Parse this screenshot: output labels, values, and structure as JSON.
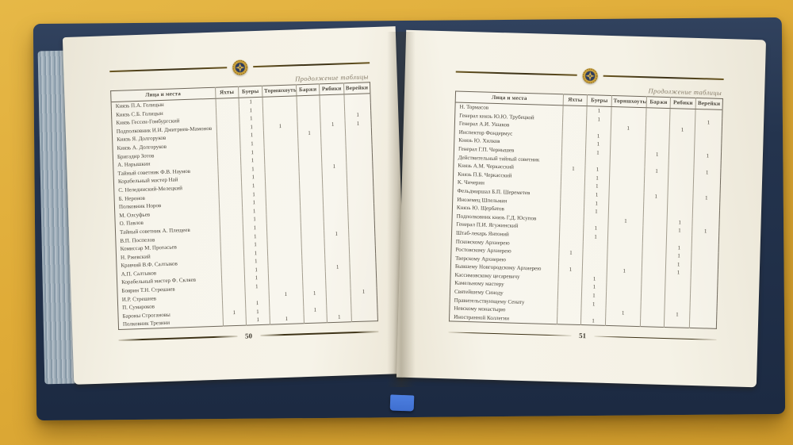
{
  "colors": {
    "background": "#dfab37",
    "cover": "#24344e",
    "page": "#f3f0e4",
    "gold": "#c79f3c",
    "ink": "#4b463c",
    "rule": "#3e3317",
    "page_edge": "#aebdc6",
    "ribbon": "#3f6fd0"
  },
  "left_page": {
    "caption": "Продолжение таблицы",
    "page_number": "50",
    "table": {
      "name_header": "Лица и места",
      "columns": [
        "Яхты",
        "Буеры",
        "Торншхоуты",
        "Баржи",
        "Рябики",
        "Верейки"
      ],
      "rows": [
        {
          "name": "Князь П.А. Голицын",
          "values": [
            "",
            "1",
            "",
            "",
            "",
            ""
          ]
        },
        {
          "name": "Князь С.Б. Голицын",
          "values": [
            "",
            "1",
            "",
            "",
            "",
            ""
          ]
        },
        {
          "name": "Князь Гессен-Гомбургский",
          "values": [
            "",
            "1",
            "",
            "",
            "",
            "1"
          ]
        },
        {
          "name": "Подполковник И.И. Дмитриев-Мамонов",
          "values": [
            "",
            "1",
            "1",
            "",
            "1",
            "1"
          ]
        },
        {
          "name": "Князь Я. Долгоруков",
          "values": [
            "",
            "1",
            "",
            "1",
            "",
            ""
          ]
        },
        {
          "name": "Князь А. Долгоруков",
          "values": [
            "",
            "1",
            "",
            "",
            "",
            ""
          ]
        },
        {
          "name": "Бригадир Зотов",
          "values": [
            "",
            "1",
            "",
            "",
            "",
            ""
          ]
        },
        {
          "name": "А. Нарышкин",
          "values": [
            "",
            "1",
            "",
            "",
            "",
            ""
          ]
        },
        {
          "name": "Тайный советник Ф.В. Наумов",
          "values": [
            "",
            "1",
            "",
            "",
            "1",
            ""
          ]
        },
        {
          "name": "Корабельный мастер Най",
          "values": [
            "",
            "1",
            "",
            "",
            "",
            ""
          ]
        },
        {
          "name": "С. Нелединский-Мелецкий",
          "values": [
            "",
            "1",
            "",
            "",
            "",
            ""
          ]
        },
        {
          "name": "Б. Неронов",
          "values": [
            "",
            "1",
            "",
            "",
            "",
            ""
          ]
        },
        {
          "name": "Полковник Норов",
          "values": [
            "",
            "1",
            "",
            "",
            "",
            ""
          ]
        },
        {
          "name": "М. Олсуфьев",
          "values": [
            "",
            "1",
            "",
            "",
            "",
            ""
          ]
        },
        {
          "name": "О. Павлов",
          "values": [
            "",
            "1",
            "",
            "",
            "",
            ""
          ]
        },
        {
          "name": "Тайный советник А. Плещеев",
          "values": [
            "",
            "1",
            "",
            "",
            "",
            ""
          ]
        },
        {
          "name": "В.П. Поспелов",
          "values": [
            "",
            "1",
            "",
            "",
            "1",
            ""
          ]
        },
        {
          "name": "Комиссар М. Протасьев",
          "values": [
            "",
            "1",
            "",
            "",
            "",
            ""
          ]
        },
        {
          "name": "Н. Ржевский",
          "values": [
            "",
            "1",
            "",
            "",
            "",
            ""
          ]
        },
        {
          "name": "Кравчий В.Ф. Салтыков",
          "values": [
            "",
            "1",
            "",
            "",
            "",
            ""
          ]
        },
        {
          "name": "А.П. Салтыков",
          "values": [
            "",
            "1",
            "",
            "",
            "1",
            ""
          ]
        },
        {
          "name": "Корабельный мастер Ф. Скляев",
          "values": [
            "",
            "1",
            "",
            "",
            "",
            ""
          ]
        },
        {
          "name": "Боярин Т.Н. Стрешнев",
          "values": [
            "",
            "1",
            "",
            "",
            "",
            ""
          ]
        },
        {
          "name": "И.Р. Стрешнев",
          "values": [
            "",
            "",
            "1",
            "1",
            "",
            "1"
          ]
        },
        {
          "name": "П. Сумароков",
          "values": [
            "",
            "1",
            "",
            "",
            "",
            ""
          ]
        },
        {
          "name": "Бароны Строгановы",
          "values": [
            "1",
            "1",
            "",
            "1",
            "",
            ""
          ]
        },
        {
          "name": "Полковник Трезини",
          "values": [
            "",
            "1",
            "1",
            "",
            "1",
            ""
          ]
        }
      ]
    }
  },
  "right_page": {
    "caption": "Продолжение таблицы",
    "page_number": "51",
    "table": {
      "name_header": "Лица и места",
      "columns": [
        "Яхты",
        "Буеры",
        "Торншхоуты",
        "Баржи",
        "Рябики",
        "Верейки"
      ],
      "rows": [
        {
          "name": "Н. Тормасов",
          "values": [
            "",
            "1",
            "",
            "",
            "",
            ""
          ]
        },
        {
          "name": "Генерал князь Ю.Ю. Трубецкой",
          "values": [
            "",
            "1",
            "",
            "",
            "",
            "1"
          ]
        },
        {
          "name": "Генерал А.И. Ушаков",
          "values": [
            "",
            "",
            "1",
            "",
            "1",
            ""
          ]
        },
        {
          "name": "Инспектор Фондермус",
          "values": [
            "",
            "1",
            "",
            "",
            "",
            ""
          ]
        },
        {
          "name": "Князь Ю. Хилков",
          "values": [
            "",
            "1",
            "",
            "",
            "",
            ""
          ]
        },
        {
          "name": "Генерал Г.П. Чернышев",
          "values": [
            "",
            "1",
            "",
            "1",
            "",
            "1"
          ]
        },
        {
          "name": "Действительный тайный советник",
          "values": [
            "",
            "",
            "",
            "",
            "",
            ""
          ]
        },
        {
          "name": "Князь А.М. Черкасский",
          "values": [
            "1",
            "1",
            "",
            "1",
            "",
            "1"
          ]
        },
        {
          "name": "Князь П.Б. Черкасский",
          "values": [
            "",
            "1",
            "",
            "",
            "",
            ""
          ]
        },
        {
          "name": "К. Чичерин",
          "values": [
            "",
            "1",
            "",
            "",
            "",
            ""
          ]
        },
        {
          "name": "Фельдмаршал Б.П. Шереметев",
          "values": [
            "",
            "1",
            "",
            "1",
            "",
            "1"
          ]
        },
        {
          "name": "Иноземец Шпельман",
          "values": [
            "",
            "1",
            "",
            "",
            "",
            ""
          ]
        },
        {
          "name": "Князь Ю. Щербатов",
          "values": [
            "",
            "1",
            "",
            "",
            "",
            ""
          ]
        },
        {
          "name": "Подполковник князь Г.Д. Юсупов",
          "values": [
            "",
            "",
            "1",
            "",
            "1",
            ""
          ]
        },
        {
          "name": "Генерал П.И. Ягужинский",
          "values": [
            "",
            "1",
            "",
            "",
            "1",
            "1"
          ]
        },
        {
          "name": "Штаб-лекарь Янтоний",
          "values": [
            "",
            "1",
            "",
            "",
            "",
            ""
          ]
        },
        {
          "name": "Псковскому Архиерею",
          "values": [
            "",
            "",
            "",
            "",
            "1",
            ""
          ]
        },
        {
          "name": "Ростовскому Архиерею",
          "values": [
            "1",
            "",
            "",
            "",
            "1",
            ""
          ]
        },
        {
          "name": "Тверскому Архиерею",
          "values": [
            "",
            "",
            "",
            "",
            "1",
            ""
          ]
        },
        {
          "name": "Бывшему Новгородскому Архиерею",
          "values": [
            "1",
            "",
            "1",
            "",
            "1",
            ""
          ]
        },
        {
          "name": "Кассимовскому цесаревичу",
          "values": [
            "",
            "1",
            "",
            "",
            "",
            ""
          ]
        },
        {
          "name": "Камельному мастеру",
          "values": [
            "",
            "1",
            "",
            "",
            "",
            ""
          ]
        },
        {
          "name": "Святейшему Синоду",
          "values": [
            "",
            "1",
            "",
            "",
            "",
            ""
          ]
        },
        {
          "name": "Правительствующему Сенату",
          "values": [
            "",
            "1",
            "",
            "",
            "",
            ""
          ]
        },
        {
          "name": "Невскому монастырю",
          "values": [
            "",
            "",
            "1",
            "",
            "1",
            ""
          ]
        },
        {
          "name": "Иностранной Коллегии",
          "values": [
            "",
            "1",
            "",
            "",
            "",
            ""
          ]
        }
      ]
    }
  }
}
